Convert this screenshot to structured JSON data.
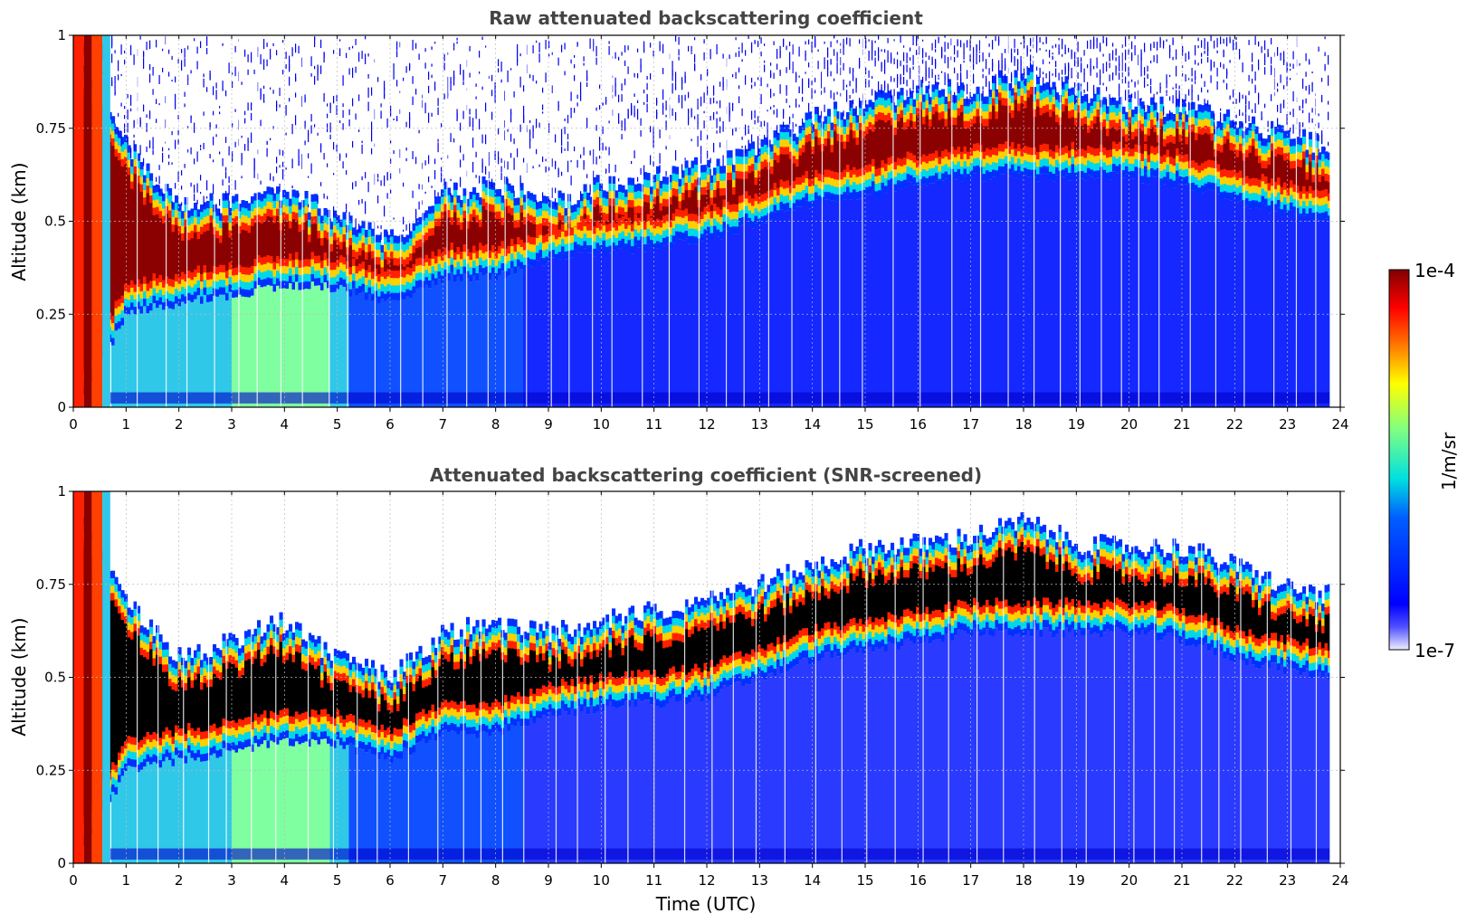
{
  "chart_data": [
    {
      "type": "heatmap",
      "title": "Raw attenuated backscattering coefficient",
      "xlabel": "",
      "ylabel": "Altitude (km)",
      "xlim": [
        0,
        24
      ],
      "ylim": [
        0,
        1
      ],
      "x_ticks": [
        "0",
        "1",
        "2",
        "3",
        "4",
        "5",
        "6",
        "7",
        "8",
        "9",
        "10",
        "11",
        "12",
        "13",
        "14",
        "15",
        "16",
        "17",
        "18",
        "19",
        "20",
        "21",
        "22",
        "23",
        "24"
      ],
      "y_ticks": [
        "0",
        "0.25",
        "0.5",
        "0.75",
        "1"
      ],
      "grid": true,
      "layer_top_km": [
        [
          0,
          0.95
        ],
        [
          1,
          0.7
        ],
        [
          2,
          0.55
        ],
        [
          3,
          0.55
        ],
        [
          4,
          0.58
        ],
        [
          5,
          0.52
        ],
        [
          6,
          0.45
        ],
        [
          7,
          0.58
        ],
        [
          8,
          0.6
        ],
        [
          9,
          0.55
        ],
        [
          10,
          0.6
        ],
        [
          11,
          0.62
        ],
        [
          12,
          0.65
        ],
        [
          13,
          0.7
        ],
        [
          14,
          0.78
        ],
        [
          15,
          0.82
        ],
        [
          16,
          0.86
        ],
        [
          17,
          0.85
        ],
        [
          18,
          0.9
        ],
        [
          19,
          0.85
        ],
        [
          20,
          0.82
        ],
        [
          21,
          0.8
        ],
        [
          22,
          0.77
        ],
        [
          23,
          0.73
        ],
        [
          23.8,
          0.7
        ]
      ],
      "layer_bottom_km": [
        [
          0,
          0.0
        ],
        [
          1,
          0.25
        ],
        [
          2,
          0.28
        ],
        [
          3,
          0.3
        ],
        [
          4,
          0.33
        ],
        [
          5,
          0.32
        ],
        [
          6,
          0.28
        ],
        [
          7,
          0.35
        ],
        [
          8,
          0.35
        ],
        [
          9,
          0.4
        ],
        [
          10,
          0.42
        ],
        [
          11,
          0.43
        ],
        [
          12,
          0.45
        ],
        [
          13,
          0.5
        ],
        [
          14,
          0.55
        ],
        [
          15,
          0.57
        ],
        [
          16,
          0.6
        ],
        [
          17,
          0.62
        ],
        [
          18,
          0.62
        ],
        [
          19,
          0.62
        ],
        [
          20,
          0.62
        ],
        [
          21,
          0.6
        ],
        [
          22,
          0.55
        ],
        [
          23,
          0.52
        ],
        [
          23.8,
          0.5
        ]
      ]
    },
    {
      "type": "heatmap",
      "title": "Attenuated backscattering coefficient (SNR-screened)",
      "xlabel": "Time (UTC)",
      "ylabel": "Altitude (km)",
      "xlim": [
        0,
        24
      ],
      "ylim": [
        0,
        1
      ],
      "x_ticks": [
        "0",
        "1",
        "2",
        "3",
        "4",
        "5",
        "6",
        "7",
        "8",
        "9",
        "10",
        "11",
        "12",
        "13",
        "14",
        "15",
        "16",
        "17",
        "18",
        "19",
        "20",
        "21",
        "22",
        "23",
        "24"
      ],
      "y_ticks": [
        "0",
        "0.25",
        "0.5",
        "0.75",
        "1"
      ],
      "grid": true,
      "layer_top_km": [
        [
          0,
          0.95
        ],
        [
          1,
          0.7
        ],
        [
          2,
          0.55
        ],
        [
          3,
          0.6
        ],
        [
          4,
          0.65
        ],
        [
          5,
          0.55
        ],
        [
          6,
          0.5
        ],
        [
          7,
          0.62
        ],
        [
          8,
          0.65
        ],
        [
          9,
          0.62
        ],
        [
          10,
          0.65
        ],
        [
          11,
          0.68
        ],
        [
          12,
          0.72
        ],
        [
          13,
          0.75
        ],
        [
          14,
          0.8
        ],
        [
          15,
          0.85
        ],
        [
          16,
          0.86
        ],
        [
          17,
          0.88
        ],
        [
          18,
          0.92
        ],
        [
          19,
          0.86
        ],
        [
          20,
          0.85
        ],
        [
          21,
          0.85
        ],
        [
          22,
          0.8
        ],
        [
          23,
          0.74
        ],
        [
          23.8,
          0.72
        ]
      ],
      "layer_bottom_km": [
        [
          0,
          0.0
        ],
        [
          1,
          0.25
        ],
        [
          2,
          0.28
        ],
        [
          3,
          0.3
        ],
        [
          4,
          0.33
        ],
        [
          5,
          0.32
        ],
        [
          6,
          0.28
        ],
        [
          7,
          0.35
        ],
        [
          8,
          0.35
        ],
        [
          9,
          0.4
        ],
        [
          10,
          0.42
        ],
        [
          11,
          0.43
        ],
        [
          12,
          0.45
        ],
        [
          13,
          0.5
        ],
        [
          14,
          0.55
        ],
        [
          15,
          0.57
        ],
        [
          16,
          0.6
        ],
        [
          17,
          0.62
        ],
        [
          18,
          0.62
        ],
        [
          19,
          0.62
        ],
        [
          20,
          0.62
        ],
        [
          21,
          0.6
        ],
        [
          22,
          0.55
        ],
        [
          23,
          0.52
        ],
        [
          23.8,
          0.5
        ]
      ]
    }
  ],
  "colorbar": {
    "max_label": "1e-4",
    "min_label": "1e-7",
    "unit_label": "1/m/sr",
    "colormap": "jet",
    "colors": [
      "#eeeeff",
      "#0000cc",
      "#0000ff",
      "#0080ff",
      "#00e0e0",
      "#80ff80",
      "#ffff00",
      "#ff8000",
      "#ff0000",
      "#800000"
    ]
  }
}
